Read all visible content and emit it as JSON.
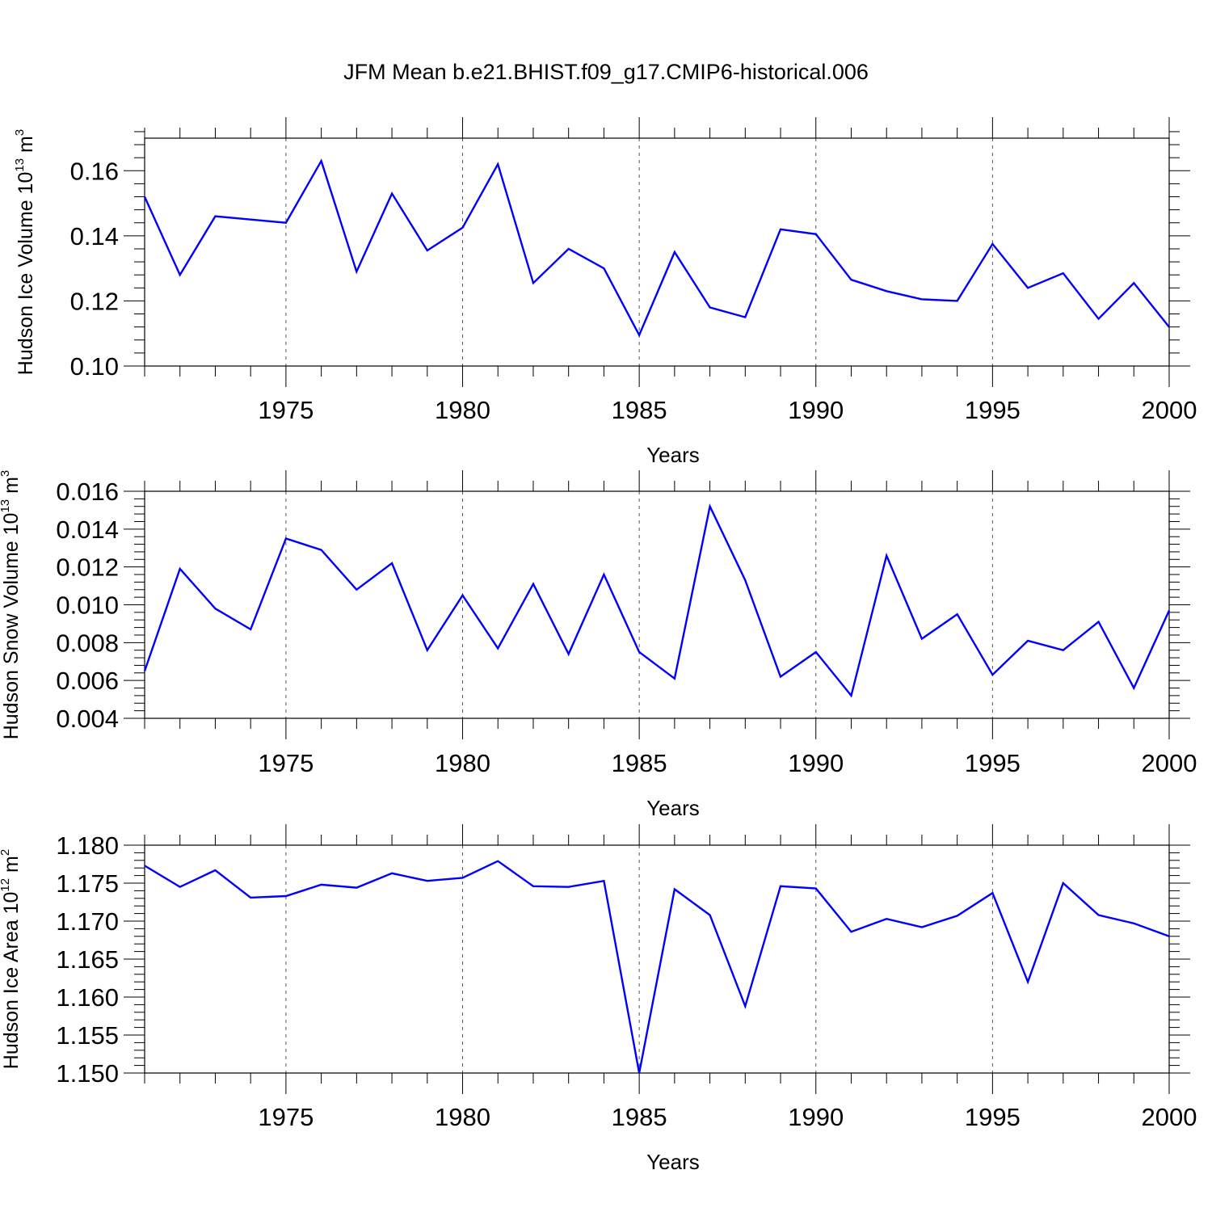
{
  "title": "JFM Mean b.e21.BHIST.f09_g17.CMIP6-historical.006",
  "colors": {
    "series": "#0000ff",
    "axis": "#000000",
    "grid": "#555555"
  },
  "chart_data": [
    {
      "type": "line",
      "xlabel": "Years",
      "ylabel": {
        "main": "Hudson Ice Volume 10",
        "sup": "13",
        "unit": " m",
        "unit_sup": "3"
      },
      "xlim": [
        1971,
        2000
      ],
      "ylim": [
        0.1,
        0.17
      ],
      "xticks": [
        1975,
        1980,
        1985,
        1990,
        1995,
        2000
      ],
      "yticks": [
        "0.10",
        "0.12",
        "0.14",
        "0.16"
      ],
      "grid": "vertical dashed at major x ticks",
      "x": [
        1971,
        1972,
        1973,
        1974,
        1975,
        1976,
        1977,
        1978,
        1979,
        1980,
        1981,
        1982,
        1983,
        1984,
        1985,
        1986,
        1987,
        1988,
        1989,
        1990,
        1991,
        1992,
        1993,
        1994,
        1995,
        1996,
        1997,
        1998,
        1999,
        2000
      ],
      "series": [
        {
          "values": [
            0.152,
            0.128,
            0.146,
            0.145,
            0.144,
            0.163,
            0.129,
            0.153,
            0.1355,
            0.1425,
            0.162,
            0.1255,
            0.136,
            0.13,
            0.1095,
            0.135,
            0.118,
            0.115,
            0.142,
            0.1405,
            0.1265,
            0.123,
            0.1205,
            0.12,
            0.1375,
            0.124,
            0.1285,
            0.1145,
            0.1255,
            0.112
          ]
        }
      ]
    },
    {
      "type": "line",
      "xlabel": "Years",
      "ylabel": {
        "main": "Hudson Snow Volume 10",
        "sup": "13",
        "unit": " m",
        "unit_sup": "3"
      },
      "xlim": [
        1971,
        2000
      ],
      "ylim": [
        0.004,
        0.016
      ],
      "xticks": [
        1975,
        1980,
        1985,
        1990,
        1995,
        2000
      ],
      "yticks": [
        "0.004",
        "0.006",
        "0.008",
        "0.010",
        "0.012",
        "0.014",
        "0.016"
      ],
      "grid": "vertical dashed at major x ticks",
      "x": [
        1971,
        1972,
        1973,
        1974,
        1975,
        1976,
        1977,
        1978,
        1979,
        1980,
        1981,
        1982,
        1983,
        1984,
        1985,
        1986,
        1987,
        1988,
        1989,
        1990,
        1991,
        1992,
        1993,
        1994,
        1995,
        1996,
        1997,
        1998,
        1999,
        2000
      ],
      "series": [
        {
          "values": [
            0.0065,
            0.0119,
            0.0098,
            0.0087,
            0.0135,
            0.0129,
            0.0108,
            0.0122,
            0.0076,
            0.0105,
            0.0077,
            0.0111,
            0.0074,
            0.0116,
            0.0075,
            0.0061,
            0.0152,
            0.0113,
            0.0062,
            0.0075,
            0.0052,
            0.0126,
            0.0082,
            0.0095,
            0.0063,
            0.0081,
            0.0076,
            0.0091,
            0.0056,
            0.0097
          ]
        }
      ]
    },
    {
      "type": "line",
      "xlabel": "Years",
      "ylabel": {
        "main": "Hudson Ice Area 10",
        "sup": "12",
        "unit": " m",
        "unit_sup": "2"
      },
      "xlim": [
        1971,
        2000
      ],
      "ylim": [
        1.15,
        1.18
      ],
      "xticks": [
        1975,
        1980,
        1985,
        1990,
        1995,
        2000
      ],
      "yticks": [
        "1.150",
        "1.155",
        "1.160",
        "1.165",
        "1.170",
        "1.175",
        "1.180"
      ],
      "grid": "vertical dashed at major x ticks",
      "x": [
        1971,
        1972,
        1973,
        1974,
        1975,
        1976,
        1977,
        1978,
        1979,
        1980,
        1981,
        1982,
        1983,
        1984,
        1985,
        1986,
        1987,
        1988,
        1989,
        1990,
        1991,
        1992,
        1993,
        1994,
        1995,
        1996,
        1997,
        1998,
        1999,
        2000
      ],
      "series": [
        {
          "values": [
            1.1773,
            1.1745,
            1.1767,
            1.1731,
            1.1733,
            1.1748,
            1.1744,
            1.1763,
            1.1753,
            1.1757,
            1.1779,
            1.1746,
            1.1745,
            1.1753,
            1.15,
            1.1742,
            1.1708,
            1.1588,
            1.1746,
            1.1743,
            1.1686,
            1.1703,
            1.1692,
            1.1707,
            1.1737,
            1.162,
            1.175,
            1.1708,
            1.1697,
            1.168
          ]
        }
      ]
    }
  ]
}
